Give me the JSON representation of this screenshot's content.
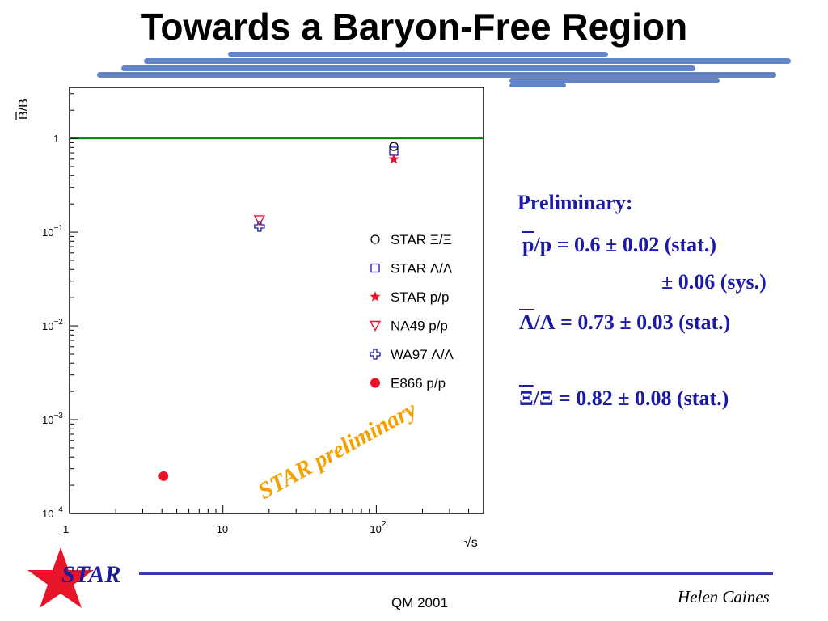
{
  "slide": {
    "title": "Towards a Baryon-Free Region",
    "conference": "QM 2001",
    "author": "Helen Caines",
    "logo_text": "STAR",
    "watermark": "STAR preliminary"
  },
  "results": {
    "heading": "Preliminary:",
    "line1_prefix": "p",
    "line1_rest": "/p  =  0.6 ± 0.02 (stat.)",
    "line2": "± 0.06 (sys.)",
    "line3_prefix": "Λ",
    "line3_rest": "/Λ =  0.73 ± 0.03 (stat.)",
    "line4_prefix": "Ξ",
    "line4_rest": "/Ξ = 0.82 ± 0.08 (stat.)"
  },
  "colors": {
    "title": "#000000",
    "text_blue": "#1a1aa6",
    "brush_blue": "#5b7fc6",
    "reference_line": "#008000",
    "red": "#e8142a",
    "watermark": "#f5a000"
  },
  "chart_data": {
    "type": "scatter",
    "xscale": "log",
    "yscale": "log",
    "xlim": [
      1,
      500
    ],
    "ylim": [
      0.0001,
      3.5
    ],
    "xlabel": "√s",
    "ylabel": "B/B",
    "xticks": [
      {
        "v": 1,
        "label": "1"
      },
      {
        "v": 10,
        "label": "10"
      },
      {
        "v": 100,
        "label": "10",
        "sup": "2"
      }
    ],
    "yticks": [
      {
        "v": 1,
        "label": "1",
        "sup": ""
      },
      {
        "v": 0.1,
        "label": "10",
        "sup": "−1"
      },
      {
        "v": 0.01,
        "label": "10",
        "sup": "−2"
      },
      {
        "v": 0.001,
        "label": "10",
        "sup": "−3"
      },
      {
        "v": 0.0001,
        "label": "10",
        "sup": "−4"
      }
    ],
    "reference_line_y": 1,
    "series": [
      {
        "name": "STAR Ξ/Ξ",
        "marker": "open-circle",
        "color": "#000000",
        "points": [
          {
            "x": 130,
            "y": 0.82
          }
        ]
      },
      {
        "name": "STAR Λ/Λ",
        "marker": "open-square",
        "color": "#1a1aa6",
        "points": [
          {
            "x": 130,
            "y": 0.73
          }
        ]
      },
      {
        "name": "STAR p/p",
        "marker": "star",
        "color": "#e8142a",
        "points": [
          {
            "x": 130,
            "y": 0.6
          }
        ]
      },
      {
        "name": "NA49 p/p",
        "marker": "open-triangle-down",
        "color": "#e8142a",
        "points": [
          {
            "x": 17.3,
            "y": 0.135
          }
        ]
      },
      {
        "name": "WA97 Λ/Λ",
        "marker": "open-cross",
        "color": "#1a1aa6",
        "points": [
          {
            "x": 17.3,
            "y": 0.115
          }
        ]
      },
      {
        "name": "E866 p/p",
        "marker": "filled-circle",
        "color": "#e8142a",
        "points": [
          {
            "x": 4.1,
            "y": 0.00025
          }
        ]
      }
    ]
  }
}
